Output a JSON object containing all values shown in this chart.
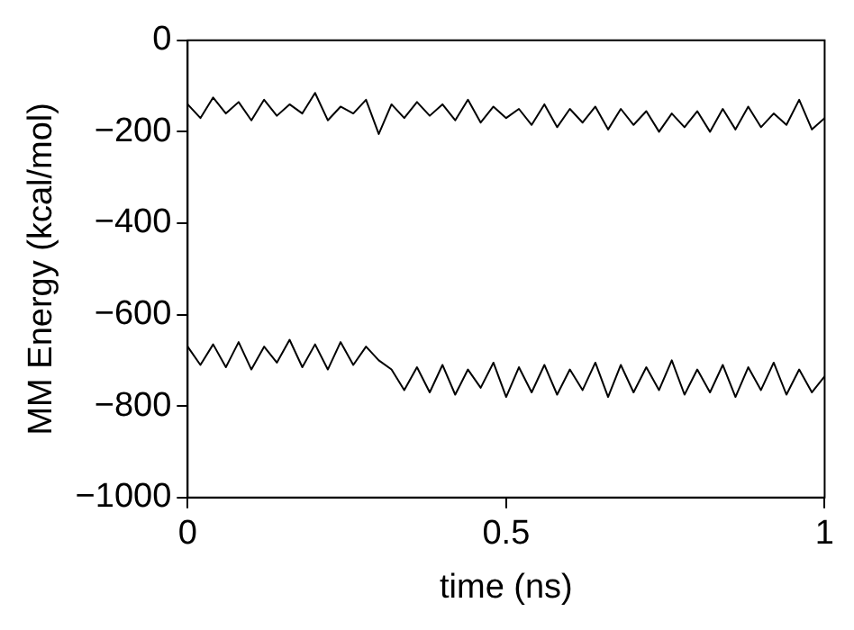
{
  "chart_data": {
    "type": "line",
    "xlabel": "time (ns)",
    "ylabel": "MM Energy (kcal/mol)",
    "xlim": [
      0,
      1
    ],
    "xticks": [
      0,
      0.5,
      1
    ],
    "ylim": [
      -1000,
      0
    ],
    "yticks": [
      {
        "value": -1000,
        "label": "−1000"
      },
      {
        "value": -800,
        "label": "−800"
      },
      {
        "value": -600,
        "label": "−600"
      },
      {
        "value": -400,
        "label": "−400"
      },
      {
        "value": -200,
        "label": "−200"
      },
      0
    ],
    "grid": false,
    "legend": false,
    "marker": "none",
    "line_style": "solid",
    "series": [
      {
        "color": "#000000",
        "x": [
          0,
          0.02,
          0.04,
          0.06,
          0.08,
          0.1,
          0.12,
          0.14,
          0.16,
          0.18,
          0.2,
          0.22,
          0.24,
          0.26,
          0.28,
          0.3,
          0.32,
          0.34,
          0.36,
          0.38,
          0.4,
          0.42,
          0.44,
          0.46,
          0.48,
          0.5,
          0.52,
          0.54,
          0.56,
          0.58,
          0.6,
          0.62,
          0.64,
          0.66,
          0.68,
          0.7,
          0.72,
          0.74,
          0.76,
          0.78,
          0.8,
          0.82,
          0.84,
          0.86,
          0.88,
          0.9,
          0.92,
          0.94,
          0.96,
          0.98,
          1
        ],
        "values": [
          -140,
          -170,
          -125,
          -160,
          -135,
          -175,
          -130,
          -165,
          -140,
          -160,
          -115,
          -175,
          -145,
          -160,
          -130,
          -205,
          -140,
          -170,
          -135,
          -165,
          -140,
          -175,
          -130,
          -180,
          -145,
          -170,
          -150,
          -185,
          -140,
          -190,
          -150,
          -180,
          -145,
          -195,
          -150,
          -185,
          -155,
          -200,
          -160,
          -190,
          -155,
          -200,
          -150,
          -195,
          -145,
          -190,
          -160,
          -185,
          -130,
          -195,
          -170
        ]
      },
      {
        "color": "#000000",
        "x": [
          0,
          0.02,
          0.04,
          0.06,
          0.08,
          0.1,
          0.12,
          0.14,
          0.16,
          0.18,
          0.2,
          0.22,
          0.24,
          0.26,
          0.28,
          0.3,
          0.32,
          0.34,
          0.36,
          0.38,
          0.4,
          0.42,
          0.44,
          0.46,
          0.48,
          0.5,
          0.52,
          0.54,
          0.56,
          0.58,
          0.6,
          0.62,
          0.64,
          0.66,
          0.68,
          0.7,
          0.72,
          0.74,
          0.76,
          0.78,
          0.8,
          0.82,
          0.84,
          0.86,
          0.88,
          0.9,
          0.92,
          0.94,
          0.96,
          0.98,
          1
        ],
        "values": [
          -670,
          -710,
          -665,
          -715,
          -660,
          -720,
          -670,
          -705,
          -655,
          -715,
          -665,
          -720,
          -660,
          -710,
          -670,
          -700,
          -720,
          -765,
          -715,
          -770,
          -710,
          -775,
          -720,
          -760,
          -705,
          -780,
          -715,
          -770,
          -710,
          -775,
          -720,
          -765,
          -705,
          -780,
          -710,
          -770,
          -715,
          -765,
          -700,
          -775,
          -720,
          -770,
          -710,
          -780,
          -715,
          -765,
          -705,
          -775,
          -720,
          -770,
          -735
        ]
      }
    ]
  }
}
